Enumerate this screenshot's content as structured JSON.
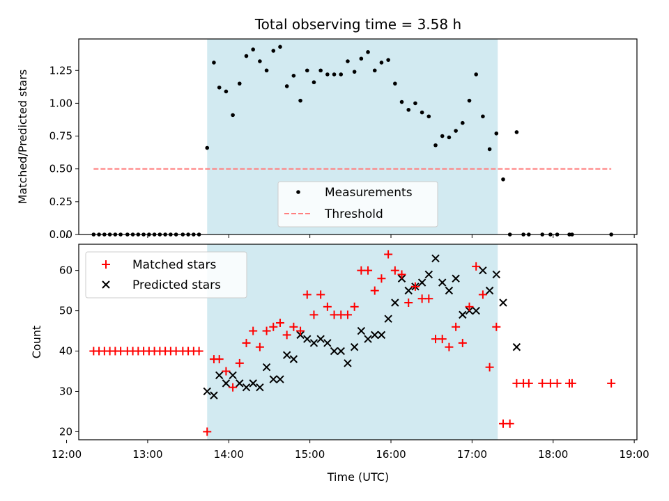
{
  "chart_data": [
    {
      "type": "scatter",
      "title": "Total observing time = 3.58 h",
      "xlabel": "",
      "ylabel": "Matched/Predicted stars",
      "ylim": [
        0,
        1.49
      ],
      "xlim": [
        "12:09",
        "19:02"
      ],
      "xticks": [
        "12:00",
        "13:00",
        "14:00",
        "15:00",
        "16:00",
        "17:00",
        "18:00",
        "19:00"
      ],
      "yticks": [
        "0.00",
        "0.25",
        "0.50",
        "0.75",
        "1.00",
        "1.25"
      ],
      "yticks_values": [
        0,
        0.25,
        0.5,
        0.75,
        1.0,
        1.25
      ],
      "shaded_span": [
        "13:44",
        "17:19"
      ],
      "shaded_color": "#add8e6",
      "legend_position": "lower-center",
      "threshold": {
        "name": "Threshold",
        "value": 0.5,
        "x_range": [
          "12:20",
          "18:43"
        ],
        "color": "#ff7f7f"
      },
      "series": [
        {
          "name": "Measurements",
          "color": "#000000",
          "points": [
            [
              "12:20",
              0
            ],
            [
              "12:24",
              0
            ],
            [
              "12:28",
              0
            ],
            [
              "12:32",
              0
            ],
            [
              "12:36",
              0
            ],
            [
              "12:40",
              0
            ],
            [
              "12:45",
              0
            ],
            [
              "12:49",
              0
            ],
            [
              "12:53",
              0
            ],
            [
              "12:57",
              0
            ],
            [
              "13:01",
              0
            ],
            [
              "13:05",
              0
            ],
            [
              "13:09",
              0
            ],
            [
              "13:13",
              0
            ],
            [
              "13:17",
              0
            ],
            [
              "13:21",
              0
            ],
            [
              "13:26",
              0
            ],
            [
              "13:30",
              0
            ],
            [
              "13:34",
              0
            ],
            [
              "13:38",
              0
            ],
            [
              "13:44",
              0.66
            ],
            [
              "13:49",
              1.31
            ],
            [
              "13:53",
              1.12
            ],
            [
              "13:58",
              1.09
            ],
            [
              "14:03",
              0.91
            ],
            [
              "14:08",
              1.15
            ],
            [
              "14:13",
              1.36
            ],
            [
              "14:18",
              1.41
            ],
            [
              "14:23",
              1.32
            ],
            [
              "14:28",
              1.25
            ],
            [
              "14:33",
              1.4
            ],
            [
              "14:38",
              1.43
            ],
            [
              "14:43",
              1.13
            ],
            [
              "14:48",
              1.21
            ],
            [
              "14:53",
              1.02
            ],
            [
              "14:58",
              1.25
            ],
            [
              "15:03",
              1.16
            ],
            [
              "15:08",
              1.25
            ],
            [
              "15:13",
              1.22
            ],
            [
              "15:18",
              1.22
            ],
            [
              "15:23",
              1.22
            ],
            [
              "15:28",
              1.32
            ],
            [
              "15:33",
              1.24
            ],
            [
              "15:38",
              1.34
            ],
            [
              "15:43",
              1.39
            ],
            [
              "15:48",
              1.25
            ],
            [
              "15:53",
              1.31
            ],
            [
              "15:58",
              1.33
            ],
            [
              "16:03",
              1.15
            ],
            [
              "16:08",
              1.01
            ],
            [
              "16:13",
              0.95
            ],
            [
              "16:18",
              1.0
            ],
            [
              "16:23",
              0.93
            ],
            [
              "16:28",
              0.9
            ],
            [
              "16:33",
              0.68
            ],
            [
              "16:38",
              0.75
            ],
            [
              "16:43",
              0.74
            ],
            [
              "16:48",
              0.79
            ],
            [
              "16:53",
              0.85
            ],
            [
              "16:58",
              1.02
            ],
            [
              "17:03",
              1.22
            ],
            [
              "17:08",
              0.9
            ],
            [
              "17:13",
              0.65
            ],
            [
              "17:18",
              0.77
            ],
            [
              "17:23",
              0.42
            ],
            [
              "17:28",
              0
            ],
            [
              "17:33",
              0.78
            ],
            [
              "17:38",
              0
            ],
            [
              "17:42",
              0
            ],
            [
              "17:52",
              0
            ],
            [
              "17:58",
              0
            ],
            [
              "18:03",
              0
            ],
            [
              "18:12",
              0
            ],
            [
              "18:14",
              0
            ],
            [
              "18:43",
              0
            ]
          ]
        }
      ]
    },
    {
      "type": "scatter",
      "title": "",
      "xlabel": "Time (UTC)",
      "ylabel": "Count",
      "ylim": [
        18,
        66.5
      ],
      "xlim": [
        "12:09",
        "19:02"
      ],
      "xticks": [
        "12:00",
        "13:00",
        "14:00",
        "15:00",
        "16:00",
        "17:00",
        "18:00",
        "19:00"
      ],
      "yticks": [
        "20",
        "30",
        "40",
        "50",
        "60"
      ],
      "yticks_values": [
        20,
        30,
        40,
        50,
        60
      ],
      "shaded_span": [
        "13:44",
        "17:19"
      ],
      "shaded_color": "#add8e6",
      "legend_position": "top-left",
      "series": [
        {
          "name": "Matched stars",
          "marker": "plus",
          "color": "#ff0000",
          "points": [
            [
              "12:20",
              40
            ],
            [
              "12:24",
              40
            ],
            [
              "12:28",
              40
            ],
            [
              "12:32",
              40
            ],
            [
              "12:36",
              40
            ],
            [
              "12:40",
              40
            ],
            [
              "12:45",
              40
            ],
            [
              "12:49",
              40
            ],
            [
              "12:53",
              40
            ],
            [
              "12:57",
              40
            ],
            [
              "13:01",
              40
            ],
            [
              "13:05",
              40
            ],
            [
              "13:09",
              40
            ],
            [
              "13:13",
              40
            ],
            [
              "13:17",
              40
            ],
            [
              "13:21",
              40
            ],
            [
              "13:26",
              40
            ],
            [
              "13:30",
              40
            ],
            [
              "13:34",
              40
            ],
            [
              "13:38",
              40
            ],
            [
              "13:44",
              20
            ],
            [
              "13:49",
              38
            ],
            [
              "13:53",
              38
            ],
            [
              "13:58",
              35
            ],
            [
              "14:03",
              31
            ],
            [
              "14:08",
              37
            ],
            [
              "14:13",
              42
            ],
            [
              "14:18",
              45
            ],
            [
              "14:23",
              41
            ],
            [
              "14:28",
              45
            ],
            [
              "14:33",
              46
            ],
            [
              "14:38",
              47
            ],
            [
              "14:43",
              44
            ],
            [
              "14:48",
              46
            ],
            [
              "14:53",
              45
            ],
            [
              "14:58",
              54
            ],
            [
              "15:03",
              49
            ],
            [
              "15:08",
              54
            ],
            [
              "15:13",
              51
            ],
            [
              "15:18",
              49
            ],
            [
              "15:23",
              49
            ],
            [
              "15:28",
              49
            ],
            [
              "15:33",
              51
            ],
            [
              "15:38",
              60
            ],
            [
              "15:43",
              60
            ],
            [
              "15:48",
              55
            ],
            [
              "15:53",
              58
            ],
            [
              "15:58",
              64
            ],
            [
              "16:03",
              60
            ],
            [
              "16:08",
              59
            ],
            [
              "16:13",
              52
            ],
            [
              "16:18",
              56
            ],
            [
              "16:23",
              53
            ],
            [
              "16:28",
              53
            ],
            [
              "16:33",
              43
            ],
            [
              "16:38",
              43
            ],
            [
              "16:43",
              41
            ],
            [
              "16:48",
              46
            ],
            [
              "16:53",
              42
            ],
            [
              "16:58",
              51
            ],
            [
              "17:03",
              61
            ],
            [
              "17:08",
              54
            ],
            [
              "17:13",
              36
            ],
            [
              "17:18",
              46
            ],
            [
              "17:23",
              22
            ],
            [
              "17:28",
              22
            ],
            [
              "17:33",
              32
            ],
            [
              "17:38",
              32
            ],
            [
              "17:42",
              32
            ],
            [
              "17:52",
              32
            ],
            [
              "17:58",
              32
            ],
            [
              "18:03",
              32
            ],
            [
              "18:12",
              32
            ],
            [
              "18:14",
              32
            ],
            [
              "18:43",
              32
            ]
          ]
        },
        {
          "name": "Predicted stars",
          "marker": "x",
          "color": "#000000",
          "points": [
            [
              "13:44",
              30
            ],
            [
              "13:49",
              29
            ],
            [
              "13:53",
              34
            ],
            [
              "13:58",
              32
            ],
            [
              "14:03",
              34
            ],
            [
              "14:08",
              32
            ],
            [
              "14:13",
              31
            ],
            [
              "14:18",
              32
            ],
            [
              "14:23",
              31
            ],
            [
              "14:28",
              36
            ],
            [
              "14:33",
              33
            ],
            [
              "14:38",
              33
            ],
            [
              "14:43",
              39
            ],
            [
              "14:48",
              38
            ],
            [
              "14:53",
              44
            ],
            [
              "14:58",
              43
            ],
            [
              "15:03",
              42
            ],
            [
              "15:08",
              43
            ],
            [
              "15:13",
              42
            ],
            [
              "15:18",
              40
            ],
            [
              "15:23",
              40
            ],
            [
              "15:28",
              37
            ],
            [
              "15:33",
              41
            ],
            [
              "15:38",
              45
            ],
            [
              "15:43",
              43
            ],
            [
              "15:48",
              44
            ],
            [
              "15:53",
              44
            ],
            [
              "15:58",
              48
            ],
            [
              "16:03",
              52
            ],
            [
              "16:08",
              58
            ],
            [
              "16:13",
              55
            ],
            [
              "16:18",
              56
            ],
            [
              "16:23",
              57
            ],
            [
              "16:28",
              59
            ],
            [
              "16:33",
              63
            ],
            [
              "16:38",
              57
            ],
            [
              "16:43",
              55
            ],
            [
              "16:48",
              58
            ],
            [
              "16:53",
              49
            ],
            [
              "16:58",
              50
            ],
            [
              "17:03",
              50
            ],
            [
              "17:08",
              60
            ],
            [
              "17:13",
              55
            ],
            [
              "17:18",
              59
            ],
            [
              "17:23",
              52
            ],
            [
              "17:33",
              41
            ]
          ]
        }
      ]
    }
  ]
}
